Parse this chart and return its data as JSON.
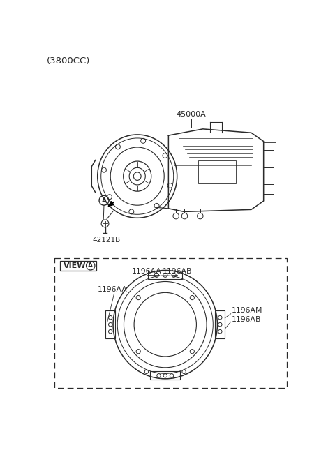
{
  "bg_color": "#ffffff",
  "line_color": "#2a2a2a",
  "title_text": "(3800CC)",
  "title_fontsize": 9.5,
  "part_label_45000A": "45000A",
  "part_label_42121B": "42121B",
  "part_label_view": "VIEW",
  "view_circle_label": "A",
  "labels_1196": {
    "1196AA_top_center": "1196AA",
    "1196AB_top": "1196AB",
    "1196AA_left": "1196AA",
    "1196AM_right": "1196AM",
    "1196AB_right": "1196AB"
  },
  "fig_width": 4.8,
  "fig_height": 6.55,
  "dpi": 100
}
